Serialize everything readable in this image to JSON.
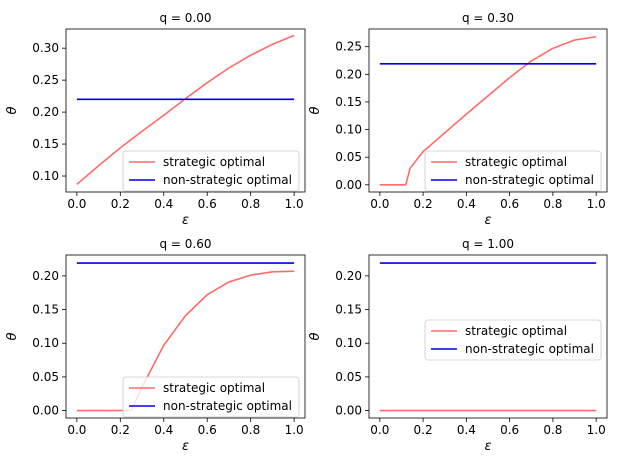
{
  "chart_data": [
    {
      "type": "line",
      "title": "q = 0.00",
      "xlabel": "ε",
      "ylabel": "θ",
      "xlim": [
        -0.05,
        1.05
      ],
      "ylim": [
        0.075,
        0.33
      ],
      "xticks": [
        "0.0",
        "0.2",
        "0.4",
        "0.6",
        "0.8",
        "1.0"
      ],
      "yticks": [
        "0.10",
        "0.15",
        "0.20",
        "0.25",
        "0.30"
      ],
      "grid": false,
      "legend_position": "lower-right",
      "series": [
        {
          "name": "strategic optimal",
          "color": "#ff6b6b",
          "x": [
            0.0,
            0.1,
            0.2,
            0.3,
            0.4,
            0.5,
            0.6,
            0.7,
            0.8,
            0.9,
            1.0
          ],
          "y": [
            0.087,
            0.116,
            0.144,
            0.17,
            0.195,
            0.221,
            0.246,
            0.269,
            0.289,
            0.306,
            0.32
          ]
        },
        {
          "name": "non-strategic optimal",
          "color": "#0000ee",
          "x": [
            0.0,
            1.0
          ],
          "y": [
            0.22,
            0.22
          ]
        }
      ]
    },
    {
      "type": "line",
      "title": "q = 0.30",
      "xlabel": "ε",
      "ylabel": "θ",
      "xlim": [
        -0.05,
        1.05
      ],
      "ylim": [
        -0.013,
        0.282
      ],
      "xticks": [
        "0.0",
        "0.2",
        "0.4",
        "0.6",
        "0.8",
        "1.0"
      ],
      "yticks": [
        "0.00",
        "0.05",
        "0.10",
        "0.15",
        "0.20",
        "0.25"
      ],
      "grid": false,
      "legend_position": "lower-right",
      "series": [
        {
          "name": "strategic optimal",
          "color": "#ff6b6b",
          "x": [
            0.0,
            0.12,
            0.14,
            0.2,
            0.3,
            0.4,
            0.5,
            0.6,
            0.7,
            0.8,
            0.9,
            1.0
          ],
          "y": [
            0.0,
            0.0,
            0.03,
            0.06,
            0.094,
            0.128,
            0.161,
            0.194,
            0.224,
            0.247,
            0.262,
            0.268
          ]
        },
        {
          "name": "non-strategic optimal",
          "color": "#0000ee",
          "x": [
            0.0,
            1.0
          ],
          "y": [
            0.219,
            0.219
          ]
        }
      ]
    },
    {
      "type": "line",
      "title": "q = 0.60",
      "xlabel": "ε",
      "ylabel": "θ",
      "xlim": [
        -0.05,
        1.05
      ],
      "ylim": [
        -0.011,
        0.231
      ],
      "xticks": [
        "0.0",
        "0.2",
        "0.4",
        "0.6",
        "0.8",
        "1.0"
      ],
      "yticks": [
        "0.00",
        "0.05",
        "0.10",
        "0.15",
        "0.20"
      ],
      "grid": false,
      "legend_position": "lower-right",
      "series": [
        {
          "name": "strategic optimal",
          "color": "#ff6b6b",
          "x": [
            0.0,
            0.25,
            0.3,
            0.4,
            0.5,
            0.6,
            0.7,
            0.8,
            0.9,
            1.0
          ],
          "y": [
            0.0,
            0.0,
            0.035,
            0.097,
            0.141,
            0.172,
            0.191,
            0.201,
            0.206,
            0.207
          ]
        },
        {
          "name": "non-strategic optimal",
          "color": "#0000ee",
          "x": [
            0.0,
            1.0
          ],
          "y": [
            0.219,
            0.219
          ]
        }
      ]
    },
    {
      "type": "line",
      "title": "q = 1.00",
      "xlabel": "ε",
      "ylabel": "θ",
      "xlim": [
        -0.05,
        1.05
      ],
      "ylim": [
        -0.011,
        0.231
      ],
      "xticks": [
        "0.0",
        "0.2",
        "0.4",
        "0.6",
        "0.8",
        "1.0"
      ],
      "yticks": [
        "0.00",
        "0.05",
        "0.10",
        "0.15",
        "0.20"
      ],
      "grid": false,
      "legend_position": "center-right",
      "series": [
        {
          "name": "strategic optimal",
          "color": "#ff6b6b",
          "x": [
            0.0,
            1.0
          ],
          "y": [
            0.0,
            0.0
          ]
        },
        {
          "name": "non-strategic optimal",
          "color": "#0000ee",
          "x": [
            0.0,
            1.0
          ],
          "y": [
            0.219,
            0.219
          ]
        }
      ]
    }
  ]
}
